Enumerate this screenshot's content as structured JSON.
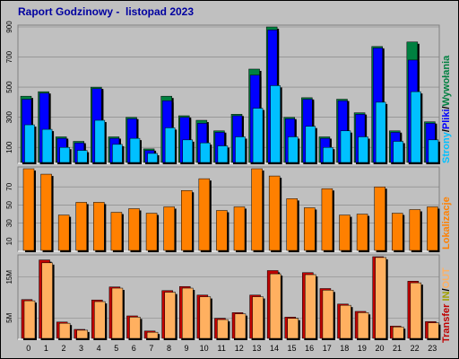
{
  "title": "Raport Godzinowy -  listopad 2023",
  "colors": {
    "background": "#c0c0c0",
    "panel": "#c0c0c0",
    "title": "#0000a0",
    "hits": "#008040",
    "files": "#0000ff",
    "pages": "#00c0ff",
    "visits": "#ff8000",
    "kb_in": "#c00000",
    "kb_out": "#ffb060"
  },
  "chart_data": [
    {
      "type": "bar",
      "name": "panel-1",
      "categories": [
        "0",
        "1",
        "2",
        "3",
        "4",
        "5",
        "6",
        "7",
        "8",
        "9",
        "10",
        "11",
        "12",
        "13",
        "14",
        "15",
        "16",
        "17",
        "18",
        "19",
        "20",
        "21",
        "22",
        "23"
      ],
      "ylim": [
        0,
        900
      ],
      "yticks": [
        "100",
        "300",
        "500",
        "700",
        "900"
      ],
      "ytick_values": [
        100,
        300,
        500,
        700,
        900
      ],
      "series": [
        {
          "name": "Strony",
          "values": [
            440,
            470,
            170,
            140,
            500,
            170,
            300,
            90,
            440,
            310,
            280,
            210,
            320,
            620,
            900,
            300,
            430,
            170,
            420,
            330,
            770,
            210,
            800,
            270
          ]
        },
        {
          "name": "Pliki",
          "values": [
            420,
            460,
            160,
            130,
            490,
            160,
            290,
            80,
            410,
            300,
            260,
            200,
            310,
            580,
            880,
            290,
            420,
            160,
            410,
            320,
            760,
            200,
            680,
            260
          ]
        },
        {
          "name": "Wywołania",
          "values": [
            250,
            220,
            100,
            80,
            280,
            120,
            160,
            60,
            230,
            150,
            130,
            110,
            170,
            360,
            510,
            170,
            240,
            100,
            210,
            170,
            400,
            140,
            470,
            150
          ]
        }
      ],
      "ylabel_parts": [
        "Strony",
        "/",
        "Pliki",
        "/",
        "Wywołania"
      ]
    },
    {
      "type": "bar",
      "name": "panel-2",
      "categories": [
        "0",
        "1",
        "2",
        "3",
        "4",
        "5",
        "6",
        "7",
        "8",
        "9",
        "10",
        "11",
        "12",
        "13",
        "14",
        "15",
        "16",
        "17",
        "18",
        "19",
        "20",
        "21",
        "22",
        "23"
      ],
      "ylim": [
        0,
        90
      ],
      "yticks": [
        "10",
        "30",
        "50",
        "70"
      ],
      "ytick_values": [
        10,
        30,
        50,
        70
      ],
      "series": [
        {
          "name": "Lokalizacje",
          "values": [
            90,
            84,
            39,
            53,
            53,
            42,
            46,
            41,
            48,
            66,
            79,
            44,
            48,
            90,
            82,
            57,
            47,
            68,
            39,
            40,
            70,
            41,
            45,
            48
          ]
        }
      ],
      "ylabel": "Lokalizacje"
    },
    {
      "type": "bar",
      "name": "panel-3",
      "categories": [
        "0",
        "1",
        "2",
        "3",
        "4",
        "5",
        "6",
        "7",
        "8",
        "9",
        "10",
        "11",
        "12",
        "13",
        "14",
        "15",
        "16",
        "17",
        "18",
        "19",
        "20",
        "21",
        "22",
        "23"
      ],
      "ylim": [
        0,
        20
      ],
      "yticks": [
        "5M",
        "15M"
      ],
      "ytick_values": [
        5,
        15
      ],
      "series": [
        {
          "name": "Transfer",
          "values": [
            9.5,
            19.2,
            4.0,
            2.2,
            9.4,
            12.6,
            5.5,
            1.8,
            11.7,
            12.7,
            10.6,
            4.9,
            6.3,
            10.6,
            16.6,
            5.2,
            16.1,
            12.2,
            8.4,
            6.6,
            20.0,
            3.0,
            14.0,
            4.1
          ]
        },
        {
          "name": "IN",
          "values": [
            9.2,
            18.5,
            3.7,
            2.0,
            9.0,
            12.3,
            5.2,
            1.5,
            11.3,
            12.3,
            10.2,
            4.6,
            6.0,
            10.2,
            15.8,
            4.9,
            15.6,
            11.8,
            8.1,
            6.3,
            19.8,
            2.8,
            13.6,
            3.8
          ]
        }
      ],
      "ylabel_parts": [
        "Transfer",
        " IN",
        "/",
        "OUT"
      ]
    }
  ]
}
